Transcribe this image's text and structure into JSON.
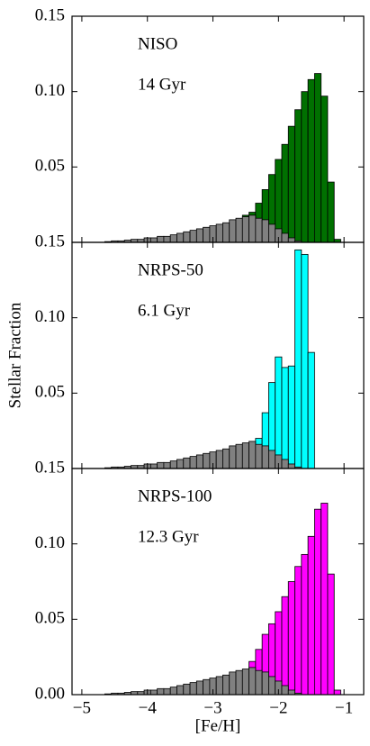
{
  "chart_data": [
    {
      "type": "histogram",
      "annotations": [
        "NISO",
        "14 Gyr"
      ],
      "bins": [
        -4.75,
        -4.65,
        -4.55,
        -4.45,
        -4.35,
        -4.25,
        -4.15,
        -4.05,
        -3.95,
        -3.85,
        -3.75,
        -3.65,
        -3.55,
        -3.45,
        -3.35,
        -3.25,
        -3.15,
        -3.05,
        -2.95,
        -2.85,
        -2.75,
        -2.65,
        -2.55,
        -2.45,
        -2.35,
        -2.25,
        -2.15,
        -2.05,
        -1.95,
        -1.85,
        -1.75,
        -1.65,
        -1.55,
        -1.45,
        -1.35,
        -1.25,
        -1.15,
        -1.05,
        -0.95
      ],
      "series": [
        {
          "color": "#007000",
          "values": [
            0,
            0,
            0,
            0,
            0,
            0,
            0,
            0,
            0,
            0,
            0,
            0,
            0,
            0,
            0,
            0,
            0,
            0,
            0,
            0.003,
            0.006,
            0.012,
            0.018,
            0.02,
            0.026,
            0.035,
            0.045,
            0.055,
            0.065,
            0.077,
            0.088,
            0.1,
            0.108,
            0.112,
            0.097,
            0.04,
            0.002,
            0
          ]
        },
        {
          "color": "#808080",
          "values": [
            0,
            0.0005,
            0.001,
            0.001,
            0.0015,
            0.002,
            0.002,
            0.003,
            0.003,
            0.004,
            0.004,
            0.005,
            0.006,
            0.007,
            0.008,
            0.009,
            0.01,
            0.011,
            0.012,
            0.013,
            0.015,
            0.016,
            0.017,
            0.018,
            0.016,
            0.015,
            0.012,
            0.009,
            0.006,
            0.003,
            0.001,
            0,
            0,
            0,
            0,
            0,
            0,
            0
          ]
        }
      ],
      "xlim": [
        -5.15,
        -0.7
      ],
      "xticks": [
        -5,
        -4,
        -3,
        -2,
        -1
      ],
      "ylim": [
        0,
        0.15
      ],
      "yticks": [
        0.05,
        {
          "value": 0.1,
          "label": "0.10"
        },
        0.15
      ]
    },
    {
      "type": "histogram",
      "annotations": [
        "NRPS-50",
        "6.1 Gyr"
      ],
      "ylabel": "Stellar Fraction",
      "bins": [
        -4.75,
        -4.65,
        -4.55,
        -4.45,
        -4.35,
        -4.25,
        -4.15,
        -4.05,
        -3.95,
        -3.85,
        -3.75,
        -3.65,
        -3.55,
        -3.45,
        -3.35,
        -3.25,
        -3.15,
        -3.05,
        -2.95,
        -2.85,
        -2.75,
        -2.65,
        -2.55,
        -2.45,
        -2.35,
        -2.25,
        -2.15,
        -2.05,
        -1.95,
        -1.85,
        -1.75,
        -1.65,
        -1.55,
        -1.45,
        -1.35,
        -1.25,
        -1.15,
        -1.05,
        -0.95
      ],
      "series": [
        {
          "color": "#00ffff",
          "values": [
            0,
            0,
            0,
            0,
            0,
            0,
            0,
            0,
            0,
            0,
            0,
            0,
            0,
            0,
            0,
            0,
            0,
            0,
            0,
            0.002,
            0.004,
            0.006,
            0.008,
            0.01,
            0.02,
            0.037,
            0.057,
            0.074,
            0.067,
            0.068,
            0.145,
            0.142,
            0.077,
            0,
            0,
            0,
            0,
            0
          ]
        },
        {
          "color": "#808080",
          "values": [
            0,
            0.0005,
            0.001,
            0.001,
            0.0015,
            0.002,
            0.002,
            0.003,
            0.003,
            0.004,
            0.004,
            0.005,
            0.006,
            0.007,
            0.008,
            0.009,
            0.01,
            0.011,
            0.012,
            0.013,
            0.015,
            0.016,
            0.017,
            0.018,
            0.016,
            0.015,
            0.012,
            0.009,
            0.006,
            0.003,
            0.001,
            0,
            0,
            0,
            0,
            0,
            0,
            0
          ]
        }
      ],
      "xlim": [
        -5.15,
        -0.7
      ],
      "xticks": [
        -5,
        -4,
        -3,
        -2,
        -1
      ],
      "ylim": [
        0,
        0.15
      ],
      "yticks": [
        0.05,
        {
          "value": 0.1,
          "label": "0.10"
        },
        0.15
      ]
    },
    {
      "type": "histogram",
      "annotations": [
        "NRPS-100",
        "12.3 Gyr"
      ],
      "xlabel": "[Fe/H]",
      "bins": [
        -4.75,
        -4.65,
        -4.55,
        -4.45,
        -4.35,
        -4.25,
        -4.15,
        -4.05,
        -3.95,
        -3.85,
        -3.75,
        -3.65,
        -3.55,
        -3.45,
        -3.35,
        -3.25,
        -3.15,
        -3.05,
        -2.95,
        -2.85,
        -2.75,
        -2.65,
        -2.55,
        -2.45,
        -2.35,
        -2.25,
        -2.15,
        -2.05,
        -1.95,
        -1.85,
        -1.75,
        -1.65,
        -1.55,
        -1.45,
        -1.35,
        -1.25,
        -1.15,
        -1.05,
        -0.95
      ],
      "series": [
        {
          "color": "#ff00ff",
          "values": [
            0,
            0,
            0,
            0,
            0,
            0,
            0,
            0,
            0,
            0,
            0,
            0,
            0,
            0,
            0,
            0,
            0,
            0,
            0.003,
            0.005,
            0.007,
            0.01,
            0.015,
            0.022,
            0.03,
            0.04,
            0.047,
            0.055,
            0.065,
            0.075,
            0.085,
            0.093,
            0.105,
            0.123,
            0.127,
            0.08,
            0.003,
            0
          ]
        },
        {
          "color": "#808080",
          "values": [
            0,
            0.0005,
            0.001,
            0.001,
            0.0015,
            0.002,
            0.002,
            0.003,
            0.003,
            0.004,
            0.004,
            0.005,
            0.006,
            0.007,
            0.008,
            0.009,
            0.01,
            0.011,
            0.012,
            0.013,
            0.015,
            0.016,
            0.017,
            0.018,
            0.016,
            0.015,
            0.012,
            0.009,
            0.006,
            0.003,
            0.001,
            0,
            0,
            0,
            0,
            0,
            0,
            0
          ]
        }
      ],
      "xlim": [
        -5.15,
        -0.7
      ],
      "xticks": [
        {
          "value": -5,
          "label": "−5"
        },
        {
          "value": -4,
          "label": "−4"
        },
        {
          "value": -3,
          "label": "−3"
        },
        {
          "value": -2,
          "label": "−2"
        },
        {
          "value": -1,
          "label": "−1"
        }
      ],
      "ylim": [
        0,
        0.15
      ],
      "yticks": [
        {
          "value": 0,
          "label": "0.00"
        },
        0.05,
        {
          "value": 0.1,
          "label": "0.10"
        },
        0.15
      ]
    }
  ]
}
